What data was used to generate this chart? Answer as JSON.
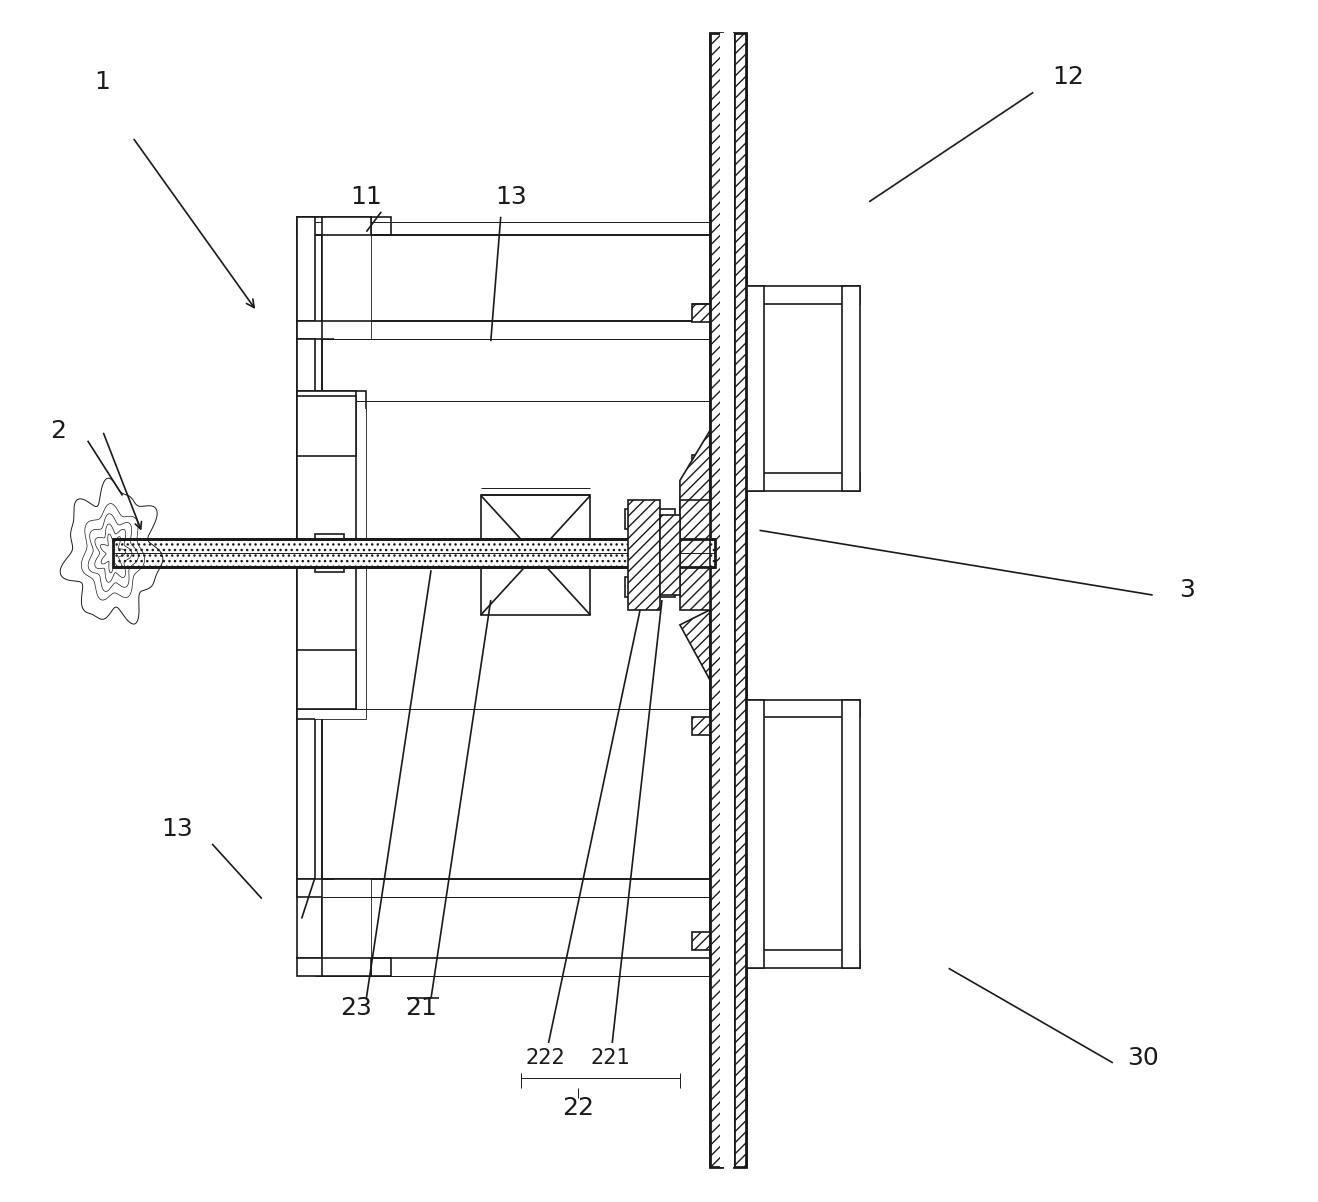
{
  "bg_color": "#ffffff",
  "lc": "#1a1a1a",
  "figsize": [
    13.18,
    12.02
  ],
  "dpi": 100,
  "lw": 1.2,
  "lw_thick": 2.0,
  "lw_thin": 0.7
}
